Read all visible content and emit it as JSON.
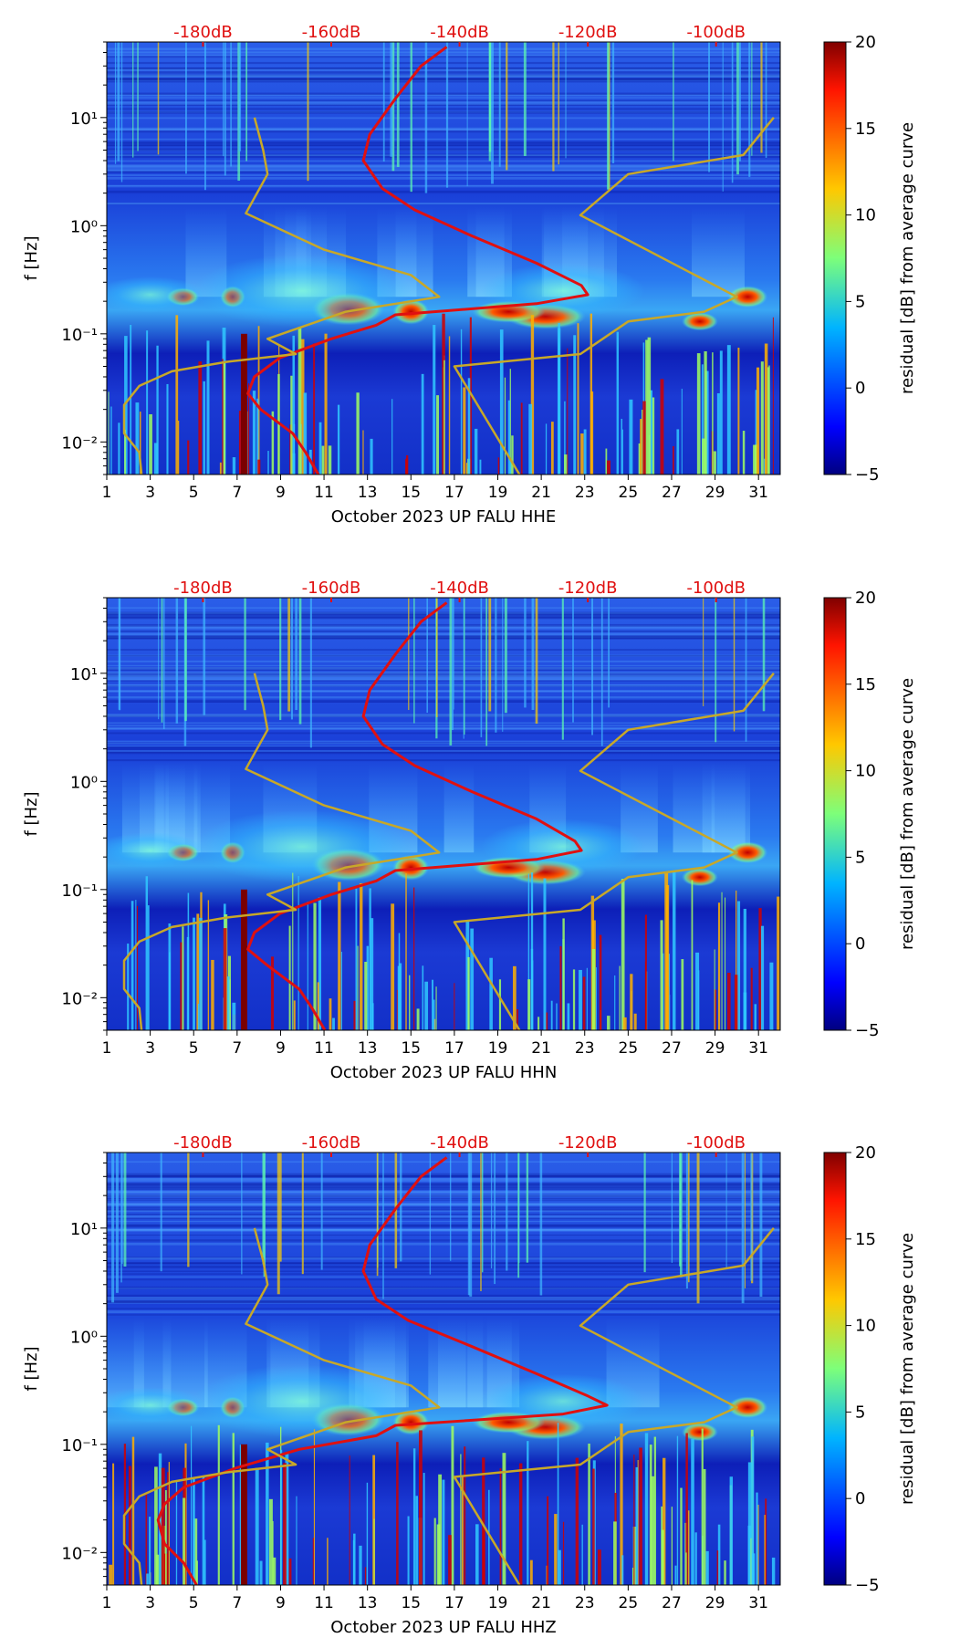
{
  "chart_data": [
    {
      "type": "heatmap",
      "xlabel": "October 2023 UP FALU  HHE",
      "ylabel": "f [Hz]",
      "x_ticks": [
        "1",
        "3",
        "5",
        "7",
        "9",
        "11",
        "13",
        "15",
        "17",
        "19",
        "21",
        "23",
        "25",
        "27",
        "29",
        "31"
      ],
      "y_ticks": [
        "10⁻²",
        "10⁻¹",
        "10⁰",
        "10¹"
      ],
      "top_axis_ticks": [
        "-180dB",
        "-160dB",
        "-140dB",
        "-120dB",
        "-100dB"
      ],
      "colorbar": {
        "label": "residual [dB] from average curve",
        "ticks": [
          "20",
          "15",
          "10",
          "5",
          "0",
          "−5"
        ],
        "range": [
          -5,
          20
        ]
      },
      "xlim": [
        1,
        32
      ],
      "ylim_hz": [
        0.005,
        50
      ],
      "series": [
        {
          "color": "#e01010",
          "axis": "top",
          "points_db_hz": [
            [
              -142,
              45
            ],
            [
              -146,
              30
            ],
            [
              -150,
              15
            ],
            [
              -154,
              7
            ],
            [
              -155,
              4
            ],
            [
              -152,
              2.2
            ],
            [
              -147,
              1.4
            ],
            [
              -138,
              0.8
            ],
            [
              -128,
              0.45
            ],
            [
              -121,
              0.28
            ],
            [
              -120,
              0.23
            ],
            [
              -128,
              0.19
            ],
            [
              -150,
              0.15
            ],
            [
              -153,
              0.12
            ],
            [
              -160,
              0.09
            ],
            [
              -168,
              0.06
            ],
            [
              -172,
              0.04
            ],
            [
              -173,
              0.028
            ],
            [
              -171,
              0.02
            ],
            [
              -166,
              0.012
            ],
            [
              -164,
              0.008
            ],
            [
              -162,
              0.005
            ]
          ]
        },
        {
          "color": "#c8a828",
          "axis": "days",
          "points_day_hz": [
            [
              7.8,
              10
            ],
            [
              8.2,
              5
            ],
            [
              8.4,
              3
            ],
            [
              7.4,
              1.3
            ],
            [
              11,
              0.6
            ],
            [
              15,
              0.35
            ],
            [
              16.3,
              0.22
            ],
            [
              12,
              0.16
            ],
            [
              8.4,
              0.09
            ],
            [
              9.7,
              0.065
            ],
            [
              6.5,
              0.055
            ],
            [
              4,
              0.045
            ],
            [
              2.5,
              0.033
            ],
            [
              1.8,
              0.022
            ],
            [
              1.8,
              0.012
            ],
            [
              2.5,
              0.008
            ],
            [
              2.6,
              0.005
            ]
          ]
        },
        {
          "color": "#c8a828",
          "axis": "days",
          "points_day_hz": [
            [
              31.7,
              10
            ],
            [
              30.3,
              4.5
            ],
            [
              25,
              3
            ],
            [
              22.8,
              1.25
            ],
            [
              30,
              0.22
            ],
            [
              28.5,
              0.16
            ],
            [
              25,
              0.13
            ],
            [
              22.8,
              0.065
            ],
            [
              17,
              0.05
            ],
            [
              20,
              0.005
            ]
          ]
        }
      ]
    },
    {
      "type": "heatmap",
      "xlabel": "October 2023 UP FALU  HHN",
      "ylabel": "f [Hz]",
      "x_ticks": [
        "1",
        "3",
        "5",
        "7",
        "9",
        "11",
        "13",
        "15",
        "17",
        "19",
        "21",
        "23",
        "25",
        "27",
        "29",
        "31"
      ],
      "y_ticks": [
        "10⁻²",
        "10⁻¹",
        "10⁰",
        "10¹"
      ],
      "top_axis_ticks": [
        "-180dB",
        "-160dB",
        "-140dB",
        "-120dB",
        "-100dB"
      ],
      "colorbar": {
        "label": "residual [dB] from average curve",
        "ticks": [
          "20",
          "15",
          "10",
          "5",
          "0",
          "−5"
        ],
        "range": [
          -5,
          20
        ]
      },
      "xlim": [
        1,
        32
      ],
      "ylim_hz": [
        0.005,
        50
      ],
      "series": [
        {
          "color": "#e01010",
          "axis": "top",
          "points_db_hz": [
            [
              -142,
              45
            ],
            [
              -146,
              30
            ],
            [
              -150,
              15
            ],
            [
              -154,
              7
            ],
            [
              -155,
              4
            ],
            [
              -152,
              2.2
            ],
            [
              -147,
              1.4
            ],
            [
              -138,
              0.8
            ],
            [
              -128,
              0.45
            ],
            [
              -122,
              0.28
            ],
            [
              -121,
              0.23
            ],
            [
              -128,
              0.19
            ],
            [
              -150,
              0.15
            ],
            [
              -153,
              0.12
            ],
            [
              -160,
              0.09
            ],
            [
              -168,
              0.06
            ],
            [
              -172,
              0.04
            ],
            [
              -173,
              0.028
            ],
            [
              -170,
              0.02
            ],
            [
              -165,
              0.012
            ],
            [
              -163,
              0.008
            ],
            [
              -161,
              0.005
            ]
          ]
        },
        {
          "color": "#c8a828",
          "axis": "days",
          "points_day_hz": [
            [
              7.8,
              10
            ],
            [
              8.2,
              5
            ],
            [
              8.4,
              3
            ],
            [
              7.4,
              1.3
            ],
            [
              11,
              0.6
            ],
            [
              15,
              0.35
            ],
            [
              16.3,
              0.22
            ],
            [
              12,
              0.16
            ],
            [
              8.4,
              0.09
            ],
            [
              9.7,
              0.065
            ],
            [
              6.5,
              0.055
            ],
            [
              4,
              0.045
            ],
            [
              2.5,
              0.033
            ],
            [
              1.8,
              0.022
            ],
            [
              1.8,
              0.012
            ],
            [
              2.5,
              0.008
            ],
            [
              2.6,
              0.005
            ]
          ]
        },
        {
          "color": "#c8a828",
          "axis": "days",
          "points_day_hz": [
            [
              31.7,
              10
            ],
            [
              30.3,
              4.5
            ],
            [
              25,
              3
            ],
            [
              22.8,
              1.25
            ],
            [
              30,
              0.22
            ],
            [
              28.5,
              0.16
            ],
            [
              25,
              0.13
            ],
            [
              22.8,
              0.065
            ],
            [
              17,
              0.05
            ],
            [
              20,
              0.005
            ]
          ]
        }
      ]
    },
    {
      "type": "heatmap",
      "xlabel": "October 2023 UP FALU  HHZ",
      "ylabel": "f [Hz]",
      "x_ticks": [
        "1",
        "3",
        "5",
        "7",
        "9",
        "11",
        "13",
        "15",
        "17",
        "19",
        "21",
        "23",
        "25",
        "27",
        "29",
        "31"
      ],
      "y_ticks": [
        "10⁻²",
        "10⁻¹",
        "10⁰",
        "10¹"
      ],
      "top_axis_ticks": [
        "-180dB",
        "-160dB",
        "-140dB",
        "-120dB",
        "-100dB"
      ],
      "colorbar": {
        "label": "residual [dB] from average curve",
        "ticks": [
          "20",
          "15",
          "10",
          "5",
          "0",
          "−5"
        ],
        "range": [
          -5,
          20
        ]
      },
      "xlim": [
        1,
        32
      ],
      "ylim_hz": [
        0.005,
        50
      ],
      "series": [
        {
          "color": "#e01010",
          "axis": "top",
          "points_db_hz": [
            [
              -142,
              45
            ],
            [
              -146,
              30
            ],
            [
              -150,
              15
            ],
            [
              -154,
              7
            ],
            [
              -155,
              4
            ],
            [
              -153,
              2.2
            ],
            [
              -148,
              1.4
            ],
            [
              -138,
              0.8
            ],
            [
              -128,
              0.45
            ],
            [
              -120,
              0.28
            ],
            [
              -117,
              0.23
            ],
            [
              -124,
              0.19
            ],
            [
              -150,
              0.15
            ],
            [
              -153,
              0.12
            ],
            [
              -165,
              0.09
            ],
            [
              -175,
              0.06
            ],
            [
              -183,
              0.04
            ],
            [
              -186,
              0.028
            ],
            [
              -187,
              0.02
            ],
            [
              -186,
              0.012
            ],
            [
              -183,
              0.008
            ],
            [
              -181,
              0.005
            ]
          ]
        },
        {
          "color": "#c8a828",
          "axis": "days",
          "points_day_hz": [
            [
              7.8,
              10
            ],
            [
              8.2,
              5
            ],
            [
              8.4,
              3
            ],
            [
              7.4,
              1.3
            ],
            [
              11,
              0.6
            ],
            [
              15,
              0.35
            ],
            [
              16.3,
              0.22
            ],
            [
              12,
              0.16
            ],
            [
              8.4,
              0.09
            ],
            [
              9.7,
              0.065
            ],
            [
              6.5,
              0.055
            ],
            [
              4,
              0.045
            ],
            [
              2.5,
              0.033
            ],
            [
              1.8,
              0.022
            ],
            [
              1.8,
              0.012
            ],
            [
              2.5,
              0.008
            ],
            [
              2.6,
              0.005
            ]
          ]
        },
        {
          "color": "#c8a828",
          "axis": "days",
          "points_day_hz": [
            [
              31.7,
              10
            ],
            [
              30.3,
              4.5
            ],
            [
              25,
              3
            ],
            [
              22.8,
              1.25
            ],
            [
              30,
              0.22
            ],
            [
              28.5,
              0.16
            ],
            [
              25,
              0.13
            ],
            [
              22.8,
              0.065
            ],
            [
              17,
              0.05
            ],
            [
              20,
              0.005
            ]
          ]
        }
      ]
    }
  ]
}
